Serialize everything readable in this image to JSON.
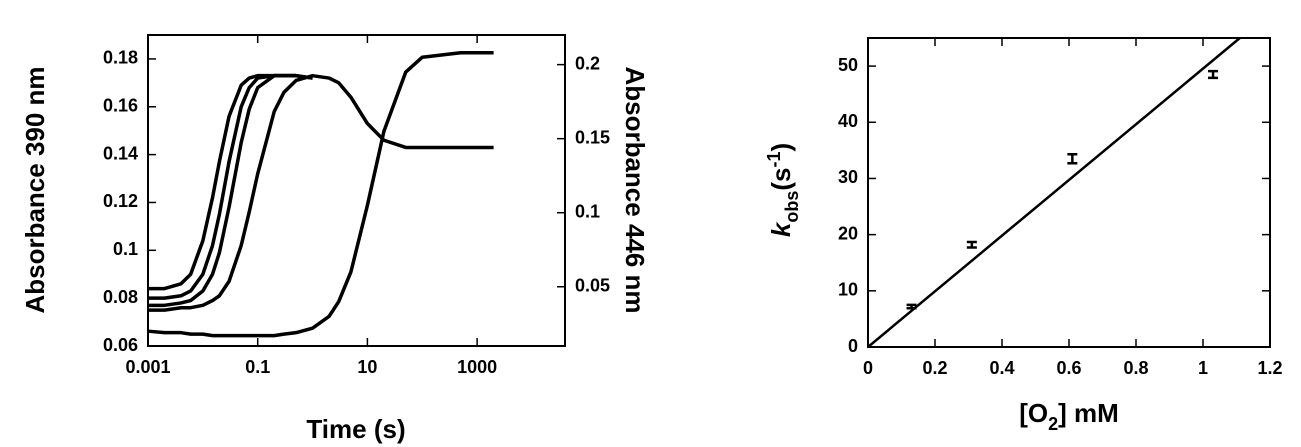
{
  "chart_data": [
    {
      "type": "line",
      "xlabel": "Time (s)",
      "ylabel": "Absorbance 390 nm",
      "y2label": "Absorbance 446 nm",
      "xscale": "log",
      "xlim": [
        0.001,
        40000
      ],
      "xticks": [
        0.001,
        0.1,
        10,
        1000
      ],
      "ylim": [
        0.06,
        0.19
      ],
      "yticks": [
        0.06,
        0.08,
        0.1,
        0.12,
        0.14,
        0.16,
        0.18
      ],
      "y2lim": [
        0.01,
        0.22
      ],
      "y2ticks": [
        0.05,
        0.1,
        0.15,
        0.2
      ],
      "series": [
        {
          "color": "#000000",
          "x": [
            0.001,
            0.002,
            0.004,
            0.006,
            0.01,
            0.015,
            0.02,
            0.03,
            0.05,
            0.07,
            0.1,
            0.2,
            0.5,
            1
          ],
          "values": [
            0.084,
            0.084,
            0.086,
            0.09,
            0.104,
            0.122,
            0.137,
            0.156,
            0.169,
            0.172,
            0.173,
            0.173,
            0.173,
            0.172
          ]
        },
        {
          "color": "#000000",
          "x": [
            0.001,
            0.002,
            0.004,
            0.006,
            0.01,
            0.015,
            0.02,
            0.03,
            0.05,
            0.07,
            0.1,
            0.2,
            0.5,
            1
          ],
          "values": [
            0.08,
            0.08,
            0.081,
            0.083,
            0.09,
            0.102,
            0.115,
            0.137,
            0.16,
            0.168,
            0.172,
            0.173,
            0.173,
            0.172
          ]
        },
        {
          "color": "#000000",
          "x": [
            0.001,
            0.002,
            0.004,
            0.006,
            0.01,
            0.015,
            0.02,
            0.03,
            0.05,
            0.07,
            0.1,
            0.2,
            0.5,
            1
          ],
          "values": [
            0.077,
            0.077,
            0.078,
            0.079,
            0.083,
            0.09,
            0.099,
            0.118,
            0.145,
            0.159,
            0.168,
            0.173,
            0.173,
            0.172
          ]
        },
        {
          "color": "#000000",
          "x": [
            0.001,
            0.002,
            0.004,
            0.006,
            0.01,
            0.015,
            0.02,
            0.03,
            0.05,
            0.07,
            0.1,
            0.2,
            0.3,
            0.5,
            1,
            2,
            3,
            5,
            10,
            20,
            50,
            100,
            500,
            2000
          ],
          "values": [
            0.075,
            0.075,
            0.076,
            0.076,
            0.077,
            0.079,
            0.081,
            0.087,
            0.102,
            0.116,
            0.132,
            0.158,
            0.166,
            0.171,
            0.173,
            0.172,
            0.17,
            0.164,
            0.153,
            0.146,
            0.143,
            0.143,
            0.143,
            0.143
          ]
        },
        {
          "color": "#000000",
          "axis": "y2",
          "x": [
            0.001,
            0.002,
            0.004,
            0.006,
            0.01,
            0.015,
            0.02,
            0.03,
            0.05,
            0.07,
            0.1,
            0.2,
            0.3,
            0.5,
            1,
            2,
            3,
            5,
            10,
            20,
            50,
            100,
            500,
            2000
          ],
          "values": [
            0.02,
            0.019,
            0.019,
            0.018,
            0.018,
            0.017,
            0.017,
            0.017,
            0.017,
            0.017,
            0.017,
            0.017,
            0.018,
            0.019,
            0.022,
            0.03,
            0.04,
            0.06,
            0.105,
            0.155,
            0.195,
            0.205,
            0.208,
            0.208
          ]
        }
      ]
    },
    {
      "type": "scatter",
      "xlabel_parts": [
        "[O",
        "2",
        "] mM"
      ],
      "ylabel_parts": [
        "k",
        "obs",
        "(s",
        "-1",
        ")"
      ],
      "xlim": [
        0,
        1.2
      ],
      "xticks": [
        0,
        0.2,
        0.4,
        0.6,
        0.8,
        1,
        1.2
      ],
      "ylim": [
        0,
        55
      ],
      "yticks": [
        0,
        10,
        20,
        30,
        40,
        50
      ],
      "series": [
        {
          "color": "#000000",
          "x": [
            0.13,
            0.31,
            0.61,
            1.03
          ],
          "values": [
            7.2,
            18.2,
            33.5,
            48.5
          ],
          "errors": [
            0.3,
            0.5,
            0.8,
            0.6
          ]
        },
        {
          "type": "line",
          "color": "#000000",
          "x": [
            0,
            1.11
          ],
          "values": [
            0,
            55
          ]
        }
      ]
    }
  ]
}
